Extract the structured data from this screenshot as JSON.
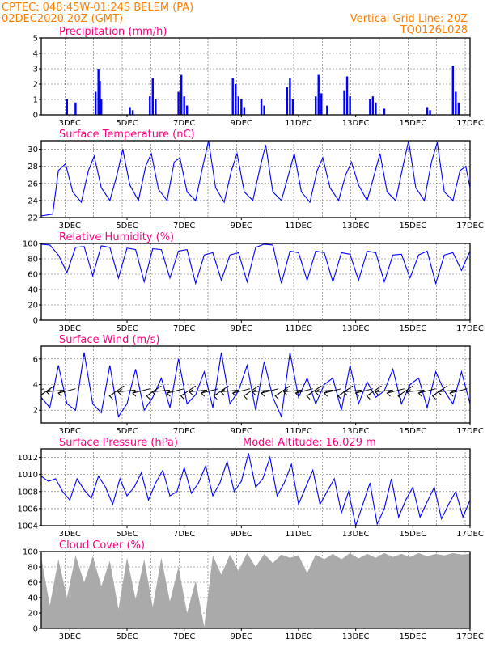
{
  "header": {
    "left_line1": "CPTEC:    048:45W-01:24S   BELEM (PA)",
    "left_line2": "02DEC2020 20Z (GMT)",
    "right_line1": "Vertical Grid Line: 20Z",
    "right_line2": "TQ0126L028"
  },
  "colors": {
    "header": "#ff7f00",
    "title": "#ff0080",
    "series": "#0000ff",
    "cloud": "#aaaaaa"
  },
  "x_labels": [
    "3DEC",
    "5DEC",
    "7DEC",
    "9DEC",
    "11DEC",
    "13DEC",
    "15DEC",
    "17DEC"
  ],
  "panels": [
    {
      "title": "Precipitation (mm/h)",
      "extra": ""
    },
    {
      "title": "Surface Temperature (nC)",
      "extra": ""
    },
    {
      "title": "Relative Humidity (%)",
      "extra": ""
    },
    {
      "title": "Surface Wind (m/s)",
      "extra": ""
    },
    {
      "title": "Surface Pressure (hPa)",
      "extra": "Model Altitude: 16.029 m"
    },
    {
      "title": "Cloud Cover (%)",
      "extra": ""
    }
  ],
  "chart_data": [
    {
      "type": "bar",
      "title": "Precipitation (mm/h)",
      "ylim": [
        0,
        5
      ],
      "yticks": [
        0,
        1,
        2,
        3,
        4,
        5
      ],
      "grid": true,
      "x_day": [
        2.9,
        3.2,
        3.9,
        4.0,
        4.05,
        4.1,
        5.1,
        5.2,
        5.8,
        5.9,
        6.0,
        6.8,
        6.9,
        7.0,
        7.1,
        8.7,
        8.8,
        8.9,
        9.0,
        9.1,
        9.7,
        9.8,
        10.6,
        10.7,
        10.8,
        11.6,
        11.7,
        11.8,
        12.0,
        12.6,
        12.7,
        12.8,
        13.5,
        13.6,
        13.7,
        14.0,
        15.5,
        15.6,
        16.4,
        16.5,
        16.6
      ],
      "values": [
        1.0,
        0.8,
        1.5,
        3.0,
        2.2,
        1.0,
        0.5,
        0.3,
        1.2,
        2.4,
        1.0,
        1.5,
        2.6,
        1.2,
        0.6,
        2.4,
        2.0,
        1.2,
        1.0,
        0.5,
        1.0,
        0.6,
        1.8,
        2.4,
        1.0,
        1.2,
        2.6,
        1.4,
        0.6,
        1.6,
        2.5,
        1.2,
        1.0,
        1.2,
        0.8,
        0.4,
        0.5,
        0.3,
        3.2,
        1.5,
        0.8
      ]
    },
    {
      "type": "line",
      "title": "Surface Temperature (nC)",
      "ylim": [
        22,
        31
      ],
      "yticks": [
        22,
        24,
        26,
        28,
        30
      ],
      "grid": true,
      "x_day": [
        2.0,
        2.4,
        2.6,
        2.85,
        3.1,
        3.4,
        3.65,
        3.85,
        4.1,
        4.4,
        4.65,
        4.85,
        5.1,
        5.4,
        5.65,
        5.85,
        6.1,
        6.4,
        6.65,
        6.85,
        7.1,
        7.4,
        7.65,
        7.85,
        8.1,
        8.4,
        8.65,
        8.85,
        9.1,
        9.4,
        9.65,
        9.85,
        10.1,
        10.4,
        10.65,
        10.85,
        11.1,
        11.4,
        11.65,
        11.85,
        12.1,
        12.4,
        12.65,
        12.85,
        13.1,
        13.4,
        13.65,
        13.85,
        14.1,
        14.4,
        14.65,
        14.85,
        15.1,
        15.4,
        15.65,
        15.85,
        16.1,
        16.4,
        16.65,
        16.85,
        17.0
      ],
      "values": [
        22.2,
        22.4,
        27.5,
        28.3,
        25.0,
        23.8,
        27.5,
        29.2,
        25.5,
        24.0,
        27.0,
        30.0,
        25.8,
        24.0,
        28.0,
        29.5,
        25.3,
        24.0,
        28.5,
        29.0,
        25.0,
        24.0,
        28.0,
        31.0,
        25.5,
        23.8,
        27.5,
        29.5,
        25.0,
        24.0,
        27.8,
        30.5,
        25.0,
        24.0,
        27.0,
        29.5,
        25.0,
        23.8,
        27.5,
        29.0,
        25.5,
        24.0,
        27.0,
        28.5,
        25.8,
        24.0,
        27.0,
        29.5,
        25.0,
        24.0,
        28.0,
        31.0,
        25.5,
        24.0,
        28.5,
        30.8,
        25.0,
        24.0,
        27.5,
        28.0,
        25.5
      ]
    },
    {
      "type": "line",
      "title": "Relative Humidity (%)",
      "ylim": [
        0,
        100
      ],
      "yticks": [
        0,
        20,
        40,
        60,
        80,
        100
      ],
      "grid": true,
      "x_day": [
        2.0,
        2.3,
        2.6,
        2.9,
        3.2,
        3.5,
        3.8,
        4.1,
        4.4,
        4.7,
        5.0,
        5.3,
        5.6,
        5.9,
        6.2,
        6.5,
        6.8,
        7.1,
        7.4,
        7.7,
        8.0,
        8.3,
        8.6,
        8.9,
        9.2,
        9.5,
        9.8,
        10.1,
        10.4,
        10.7,
        11.0,
        11.3,
        11.6,
        11.9,
        12.2,
        12.5,
        12.8,
        13.1,
        13.4,
        13.7,
        14.0,
        14.3,
        14.6,
        14.9,
        15.2,
        15.5,
        15.8,
        16.1,
        16.4,
        16.7,
        17.0
      ],
      "values": [
        99,
        98,
        85,
        62,
        95,
        96,
        58,
        97,
        95,
        55,
        94,
        92,
        50,
        93,
        92,
        55,
        90,
        92,
        48,
        85,
        88,
        52,
        85,
        88,
        50,
        95,
        99,
        98,
        48,
        90,
        88,
        52,
        90,
        88,
        50,
        88,
        86,
        52,
        90,
        88,
        50,
        85,
        86,
        55,
        85,
        90,
        48,
        85,
        88,
        65,
        90
      ]
    },
    {
      "type": "line",
      "title": "Surface Wind (m/s)",
      "ylim": [
        1,
        7
      ],
      "yticks": [
        2,
        4,
        6
      ],
      "grid": true,
      "x_day": [
        2.0,
        2.3,
        2.6,
        2.9,
        3.2,
        3.5,
        3.8,
        4.1,
        4.4,
        4.7,
        5.0,
        5.3,
        5.6,
        5.9,
        6.2,
        6.5,
        6.8,
        7.1,
        7.4,
        7.7,
        8.0,
        8.3,
        8.6,
        8.9,
        9.2,
        9.5,
        9.8,
        10.1,
        10.4,
        10.7,
        11.0,
        11.3,
        11.6,
        11.9,
        12.2,
        12.5,
        12.8,
        13.1,
        13.4,
        13.7,
        14.0,
        14.3,
        14.6,
        14.9,
        15.2,
        15.5,
        15.8,
        16.1,
        16.4,
        16.7,
        17.0
      ],
      "values": [
        3.0,
        2.2,
        5.5,
        2.5,
        2.0,
        6.5,
        2.5,
        1.8,
        5.5,
        1.5,
        2.5,
        5.2,
        2.0,
        3.0,
        4.5,
        2.2,
        6.0,
        2.5,
        3.2,
        5.0,
        2.2,
        6.5,
        2.5,
        3.5,
        5.5,
        2.0,
        5.8,
        3.0,
        1.5,
        6.5,
        3.0,
        4.5,
        2.5,
        4.0,
        4.5,
        2.0,
        5.5,
        2.5,
        4.2,
        3.0,
        3.5,
        5.2,
        2.5,
        4.0,
        4.5,
        2.2,
        5.0,
        3.5,
        2.5,
        5.0,
        2.5
      ],
      "arrows_x_day": [
        2.1,
        2.45,
        2.8,
        3.2,
        4.9,
        5.3,
        5.8,
        6.2,
        6.5,
        7.0,
        7.4,
        7.8,
        8.2,
        8.55,
        8.9,
        9.3,
        9.6,
        10.0,
        10.3,
        10.7,
        11.1,
        11.5,
        11.8,
        12.2,
        12.5,
        12.9,
        13.2,
        13.6,
        13.9,
        14.3,
        14.7,
        15.0,
        15.4,
        15.8,
        16.2,
        16.5,
        16.9
      ]
    },
    {
      "type": "line",
      "title": "Surface Pressure (hPa)",
      "ylim": [
        1004,
        1013
      ],
      "yticks": [
        1004,
        1006,
        1008,
        1010,
        1012
      ],
      "grid": true,
      "x_day": [
        2.0,
        2.25,
        2.5,
        2.75,
        3.0,
        3.25,
        3.5,
        3.75,
        4.0,
        4.25,
        4.5,
        4.75,
        5.0,
        5.25,
        5.5,
        5.75,
        6.0,
        6.25,
        6.5,
        6.75,
        7.0,
        7.25,
        7.5,
        7.75,
        8.0,
        8.25,
        8.5,
        8.75,
        9.0,
        9.25,
        9.5,
        9.75,
        10.0,
        10.25,
        10.5,
        10.75,
        11.0,
        11.25,
        11.5,
        11.75,
        12.0,
        12.25,
        12.5,
        12.75,
        13.0,
        13.25,
        13.5,
        13.75,
        14.0,
        14.25,
        14.5,
        14.75,
        15.0,
        15.25,
        15.5,
        15.75,
        16.0,
        16.25,
        16.5,
        16.75,
        17.0
      ],
      "values": [
        1009.8,
        1009.2,
        1009.5,
        1008.0,
        1007.0,
        1009.5,
        1008.2,
        1007.2,
        1009.8,
        1008.5,
        1006.5,
        1009.5,
        1007.5,
        1008.5,
        1010.2,
        1007.0,
        1009.0,
        1010.5,
        1007.5,
        1008.0,
        1010.8,
        1007.8,
        1009.0,
        1011.0,
        1007.5,
        1009.0,
        1011.5,
        1008.0,
        1009.2,
        1012.5,
        1008.5,
        1009.5,
        1012.0,
        1007.5,
        1009.0,
        1011.2,
        1006.5,
        1008.5,
        1010.5,
        1006.5,
        1008.0,
        1009.5,
        1005.5,
        1008.0,
        1004.0,
        1006.5,
        1009.0,
        1004.2,
        1006.0,
        1009.5,
        1005.0,
        1007.0,
        1008.5,
        1005.0,
        1006.8,
        1008.5,
        1004.8,
        1006.5,
        1008.0,
        1005.0,
        1007.0
      ]
    },
    {
      "type": "area",
      "title": "Cloud Cover (%)",
      "ylim": [
        0,
        100
      ],
      "yticks": [
        0,
        20,
        40,
        60,
        80,
        100
      ],
      "grid": true,
      "x_day": [
        2.0,
        2.3,
        2.6,
        2.9,
        3.2,
        3.5,
        3.8,
        4.1,
        4.4,
        4.7,
        5.0,
        5.3,
        5.6,
        5.9,
        6.2,
        6.5,
        6.8,
        7.1,
        7.4,
        7.7,
        8.0,
        8.3,
        8.6,
        8.9,
        9.2,
        9.5,
        9.8,
        10.1,
        10.4,
        10.7,
        11.0,
        11.3,
        11.6,
        11.9,
        12.2,
        12.5,
        12.8,
        13.1,
        13.4,
        13.7,
        14.0,
        14.3,
        14.6,
        14.9,
        15.2,
        15.5,
        15.8,
        16.1,
        16.4,
        16.7,
        17.0
      ],
      "values": [
        92,
        30,
        90,
        40,
        95,
        60,
        94,
        55,
        88,
        25,
        92,
        38,
        90,
        28,
        92,
        35,
        80,
        20,
        62,
        2,
        95,
        70,
        96,
        75,
        98,
        80,
        97,
        85,
        96,
        92,
        95,
        72,
        96,
        90,
        97,
        90,
        98,
        91,
        97,
        92,
        98,
        93,
        97,
        93,
        98,
        94,
        97,
        95,
        98,
        96,
        97
      ]
    }
  ]
}
